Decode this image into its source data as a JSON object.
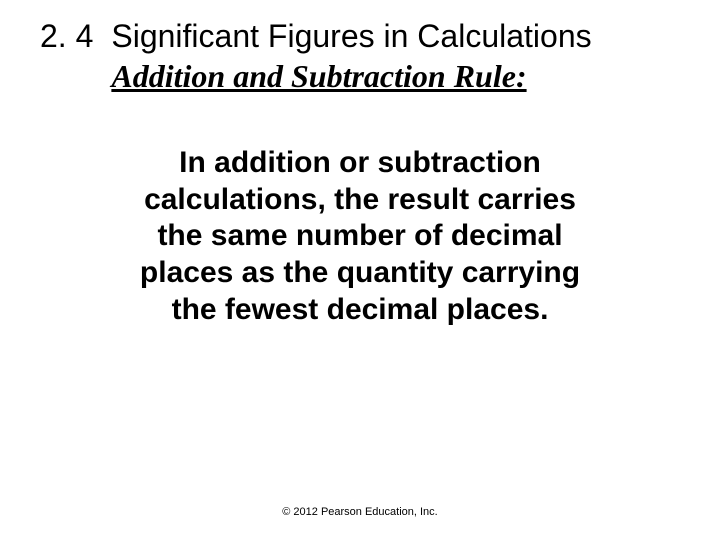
{
  "slide": {
    "section_number": "2. 4",
    "title": "Significant Figures in Calculations",
    "subtitle": "Addition and Subtraction Rule:",
    "body": "In addition or subtraction calculations, the result carries the same number of decimal places as the quantity carrying the fewest decimal places.",
    "copyright": "© 2012 Pearson Education, Inc."
  },
  "style": {
    "background_color": "#ffffff",
    "text_color": "#000000",
    "title_fontsize": 32,
    "subtitle_fontsize": 32,
    "body_fontsize": 30,
    "copyright_fontsize": 11,
    "title_font": "Arial",
    "subtitle_font": "Times New Roman",
    "body_font": "Arial"
  }
}
